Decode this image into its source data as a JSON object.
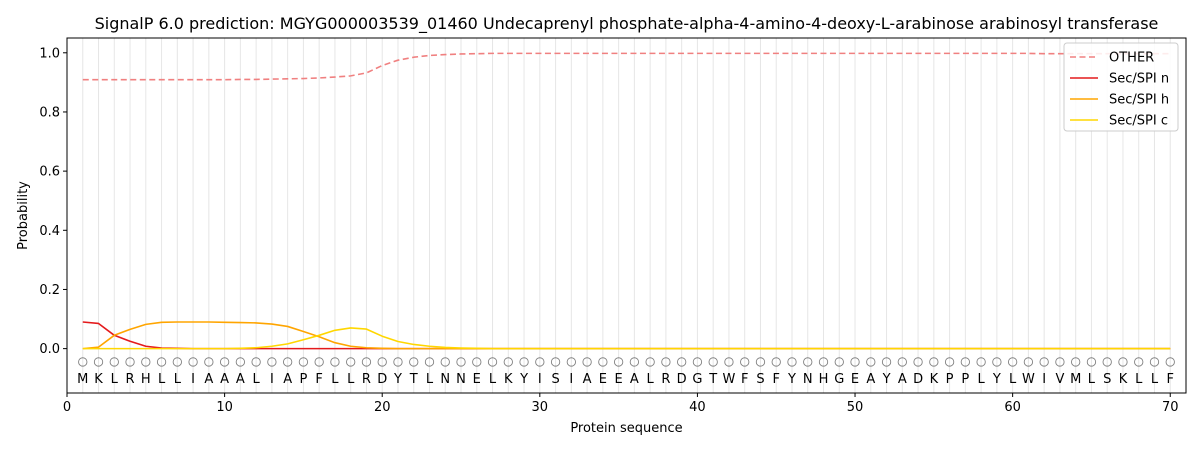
{
  "chart_data": {
    "type": "line",
    "title": "SignalP 6.0 prediction: MGYG000003539_01460 Undecaprenyl phosphate-alpha-4-amino-4-deoxy-L-arabinose arabinosyl transferase",
    "xlabel": "Protein sequence",
    "ylabel": "Probability",
    "xlim": [
      0,
      71
    ],
    "ylim": [
      -0.15,
      1.05
    ],
    "xticks": [
      0,
      10,
      20,
      30,
      40,
      50,
      60,
      70
    ],
    "yticks": [
      0.0,
      0.2,
      0.4,
      0.6,
      0.8,
      1.0
    ],
    "xtick_labels": [
      "0",
      "10",
      "20",
      "30",
      "40",
      "50",
      "60",
      "70"
    ],
    "ytick_labels": [
      "0.0",
      "0.2",
      "0.4",
      "0.6",
      "0.8",
      "1.0"
    ],
    "grid": "vertical lines at each residue",
    "legend_position": "top-right",
    "sequence": [
      "M",
      "K",
      "L",
      "R",
      "H",
      "L",
      "L",
      "I",
      "A",
      "A",
      "A",
      "L",
      "I",
      "A",
      "P",
      "F",
      "L",
      "L",
      "R",
      "D",
      "Y",
      "T",
      "L",
      "N",
      "N",
      "E",
      "L",
      "K",
      "Y",
      "I",
      "S",
      "I",
      "A",
      "E",
      "E",
      "A",
      "L",
      "R",
      "D",
      "G",
      "T",
      "W",
      "F",
      "S",
      "F",
      "Y",
      "N",
      "H",
      "G",
      "E",
      "A",
      "Y",
      "A",
      "D",
      "K",
      "P",
      "P",
      "L",
      "Y",
      "L",
      "W",
      "I",
      "V",
      "M",
      "L",
      "S",
      "K",
      "L",
      "L",
      "F"
    ],
    "marker_row_y": -0.045,
    "series": [
      {
        "name": "OTHER",
        "color": "#f08080",
        "dash": "dashed",
        "values": [
          0.909,
          0.909,
          0.909,
          0.909,
          0.909,
          0.909,
          0.909,
          0.909,
          0.909,
          0.909,
          0.91,
          0.91,
          0.911,
          0.912,
          0.913,
          0.915,
          0.918,
          0.922,
          0.932,
          0.957,
          0.975,
          0.985,
          0.991,
          0.994,
          0.996,
          0.997,
          0.998,
          0.998,
          0.998,
          0.998,
          0.998,
          0.998,
          0.998,
          0.998,
          0.998,
          0.998,
          0.998,
          0.998,
          0.998,
          0.998,
          0.998,
          0.998,
          0.998,
          0.998,
          0.998,
          0.998,
          0.998,
          0.998,
          0.998,
          0.998,
          0.998,
          0.998,
          0.998,
          0.998,
          0.998,
          0.998,
          0.998,
          0.998,
          0.998,
          0.998,
          0.998,
          0.997,
          0.997,
          0.997,
          0.997,
          0.997,
          0.997,
          0.997,
          0.997,
          0.997
        ]
      },
      {
        "name": "Sec/SPI n",
        "color": "#e41a1c",
        "dash": "solid",
        "values": [
          0.09,
          0.085,
          0.045,
          0.025,
          0.008,
          0.002,
          0.001,
          0.0,
          0.0,
          0.0,
          0.0,
          0.0,
          0.0,
          0.0,
          0.0,
          0.0,
          0.0,
          0.0,
          0.0,
          0.0,
          0.0,
          0.0,
          0.0,
          0.0,
          0.0,
          0.0,
          0.0,
          0.0,
          0.0,
          0.0,
          0.0,
          0.0,
          0.0,
          0.0,
          0.0,
          0.0,
          0.0,
          0.0,
          0.0,
          0.0,
          0.0,
          0.0,
          0.0,
          0.0,
          0.0,
          0.0,
          0.0,
          0.0,
          0.0,
          0.0,
          0.0,
          0.0,
          0.0,
          0.0,
          0.0,
          0.0,
          0.0,
          0.0,
          0.0,
          0.0,
          0.0,
          0.0,
          0.0,
          0.0,
          0.0,
          0.0,
          0.0,
          0.0,
          0.0,
          0.0
        ]
      },
      {
        "name": "Sec/SPI h",
        "color": "#ffa500",
        "dash": "solid",
        "values": [
          0.0,
          0.005,
          0.045,
          0.065,
          0.082,
          0.089,
          0.09,
          0.09,
          0.09,
          0.089,
          0.088,
          0.087,
          0.083,
          0.075,
          0.058,
          0.04,
          0.02,
          0.008,
          0.003,
          0.001,
          0.0,
          0.0,
          0.0,
          0.0,
          0.0,
          0.0,
          0.0,
          0.0,
          0.0,
          0.0,
          0.0,
          0.0,
          0.0,
          0.0,
          0.0,
          0.0,
          0.0,
          0.0,
          0.0,
          0.0,
          0.0,
          0.0,
          0.0,
          0.0,
          0.0,
          0.0,
          0.0,
          0.0,
          0.0,
          0.0,
          0.0,
          0.0,
          0.0,
          0.0,
          0.0,
          0.0,
          0.0,
          0.0,
          0.0,
          0.0,
          0.0,
          0.0,
          0.0,
          0.0,
          0.0,
          0.0,
          0.0,
          0.0,
          0.0,
          0.0
        ]
      },
      {
        "name": "Sec/SPI c",
        "color": "#ffd700",
        "dash": "solid",
        "values": [
          0.0,
          0.0,
          0.0,
          0.0,
          0.0,
          0.0,
          0.0,
          0.0,
          0.0,
          0.0,
          0.001,
          0.003,
          0.008,
          0.016,
          0.03,
          0.045,
          0.062,
          0.07,
          0.066,
          0.042,
          0.024,
          0.014,
          0.008,
          0.004,
          0.002,
          0.001,
          0.0,
          0.0,
          0.0,
          0.0,
          0.0,
          0.0,
          0.0,
          0.0,
          0.0,
          0.0,
          0.0,
          0.0,
          0.0,
          0.0,
          0.0,
          0.0,
          0.0,
          0.0,
          0.0,
          0.0,
          0.0,
          0.0,
          0.0,
          0.0,
          0.0,
          0.0,
          0.0,
          0.0,
          0.0,
          0.0,
          0.0,
          0.0,
          0.0,
          0.0,
          0.0,
          0.0,
          0.0,
          0.0,
          0.0,
          0.0,
          0.0,
          0.0,
          0.0,
          0.0
        ]
      }
    ]
  }
}
